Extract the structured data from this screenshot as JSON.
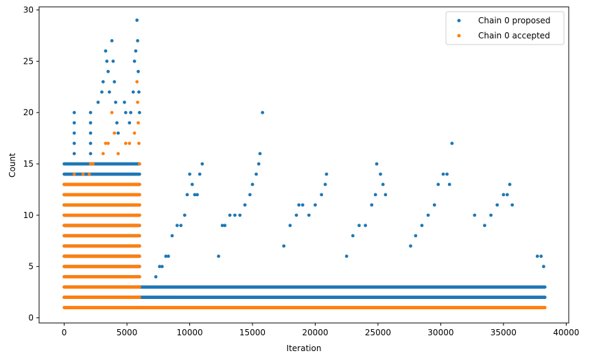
{
  "chart_data": {
    "type": "scatter",
    "title": "",
    "xlabel": "Iteration",
    "ylabel": "Count",
    "xlim": [
      -2000,
      40200
    ],
    "ylim": [
      -0.5,
      30.3
    ],
    "xticks": [
      0,
      5000,
      10000,
      15000,
      20000,
      25000,
      30000,
      35000,
      40000
    ],
    "xtick_labels": [
      "0",
      "5000",
      "10000",
      "15000",
      "20000",
      "25000",
      "30000",
      "35000",
      "40000"
    ],
    "yticks": [
      0,
      5,
      10,
      15,
      20,
      25,
      30
    ],
    "ytick_labels": [
      "0",
      "5",
      "10",
      "15",
      "20",
      "25",
      "30"
    ],
    "grid": false,
    "legend_position": "top-right",
    "series": [
      {
        "name": "Chain 0 proposed",
        "color": "#1f77b4",
        "description": "dense integer-valued counts per iteration",
        "bands": [
          {
            "x": [
              0,
              6000
            ],
            "y": [
              2,
              15
            ]
          },
          {
            "x": [
              6000,
              38300
            ],
            "y": [
              2,
              3
            ]
          }
        ],
        "extra_points": [
          [
            800,
            20
          ],
          [
            800,
            19
          ],
          [
            800,
            18
          ],
          [
            800,
            17
          ],
          [
            800,
            16
          ],
          [
            2100,
            20
          ],
          [
            2100,
            19
          ],
          [
            2100,
            18
          ],
          [
            2100,
            17
          ],
          [
            2100,
            16
          ],
          [
            2700,
            21
          ],
          [
            3000,
            22
          ],
          [
            3100,
            23
          ],
          [
            3300,
            26
          ],
          [
            3400,
            25
          ],
          [
            3500,
            24
          ],
          [
            3600,
            22
          ],
          [
            3800,
            27
          ],
          [
            3900,
            25
          ],
          [
            4000,
            23
          ],
          [
            4100,
            21
          ],
          [
            4200,
            19
          ],
          [
            4300,
            18
          ],
          [
            4800,
            21
          ],
          [
            4900,
            20
          ],
          [
            5200,
            19
          ],
          [
            5300,
            20
          ],
          [
            5500,
            22
          ],
          [
            5600,
            25
          ],
          [
            5700,
            26
          ],
          [
            5800,
            29
          ],
          [
            5850,
            27
          ],
          [
            5900,
            24
          ],
          [
            5950,
            22
          ],
          [
            6000,
            20
          ],
          [
            7300,
            4
          ],
          [
            7600,
            5
          ],
          [
            7800,
            5
          ],
          [
            8100,
            6
          ],
          [
            8300,
            6
          ],
          [
            8600,
            8
          ],
          [
            9000,
            9
          ],
          [
            9300,
            9
          ],
          [
            9600,
            10
          ],
          [
            9800,
            12
          ],
          [
            10000,
            14
          ],
          [
            10200,
            13
          ],
          [
            10400,
            12
          ],
          [
            10600,
            12
          ],
          [
            10800,
            14
          ],
          [
            11000,
            15
          ],
          [
            12300,
            6
          ],
          [
            12600,
            9
          ],
          [
            12800,
            9
          ],
          [
            13200,
            10
          ],
          [
            13600,
            10
          ],
          [
            14000,
            10
          ],
          [
            14400,
            11
          ],
          [
            14800,
            12
          ],
          [
            15000,
            13
          ],
          [
            15300,
            14
          ],
          [
            15500,
            15
          ],
          [
            15600,
            16
          ],
          [
            15800,
            20
          ],
          [
            17500,
            7
          ],
          [
            18000,
            9
          ],
          [
            18500,
            10
          ],
          [
            18700,
            11
          ],
          [
            19000,
            11
          ],
          [
            19500,
            10
          ],
          [
            20000,
            11
          ],
          [
            20500,
            12
          ],
          [
            20800,
            13
          ],
          [
            20900,
            14
          ],
          [
            22500,
            6
          ],
          [
            23000,
            8
          ],
          [
            23500,
            9
          ],
          [
            24000,
            9
          ],
          [
            24500,
            11
          ],
          [
            24800,
            12
          ],
          [
            24900,
            15
          ],
          [
            25200,
            14
          ],
          [
            25400,
            13
          ],
          [
            25600,
            12
          ],
          [
            27600,
            7
          ],
          [
            28000,
            8
          ],
          [
            28500,
            9
          ],
          [
            29000,
            10
          ],
          [
            29500,
            11
          ],
          [
            29800,
            13
          ],
          [
            30200,
            14
          ],
          [
            30500,
            14
          ],
          [
            30700,
            13
          ],
          [
            30900,
            17
          ],
          [
            32700,
            10
          ],
          [
            33500,
            9
          ],
          [
            34000,
            10
          ],
          [
            34500,
            11
          ],
          [
            35000,
            12
          ],
          [
            35300,
            12
          ],
          [
            35500,
            13
          ],
          [
            35700,
            11
          ],
          [
            37700,
            6
          ],
          [
            38000,
            6
          ],
          [
            38200,
            5
          ]
        ]
      },
      {
        "name": "Chain 0 accepted",
        "color": "#ff7f0e",
        "description": "dense integer-valued counts per iteration",
        "bands": [
          {
            "x": [
              0,
              6000
            ],
            "y": [
              1,
              13
            ]
          },
          {
            "x": [
              6000,
              38300
            ],
            "y": [
              1,
              1
            ]
          }
        ],
        "extra_points": [
          [
            800,
            14
          ],
          [
            1500,
            14
          ],
          [
            2000,
            14
          ],
          [
            2100,
            15
          ],
          [
            2300,
            15
          ],
          [
            3100,
            16
          ],
          [
            3300,
            17
          ],
          [
            3500,
            17
          ],
          [
            3800,
            20
          ],
          [
            4000,
            18
          ],
          [
            4300,
            16
          ],
          [
            4900,
            17
          ],
          [
            5200,
            17
          ],
          [
            5600,
            18
          ],
          [
            5800,
            23
          ],
          [
            5850,
            21
          ],
          [
            5900,
            19
          ],
          [
            5950,
            17
          ],
          [
            6000,
            15
          ]
        ]
      }
    ]
  }
}
